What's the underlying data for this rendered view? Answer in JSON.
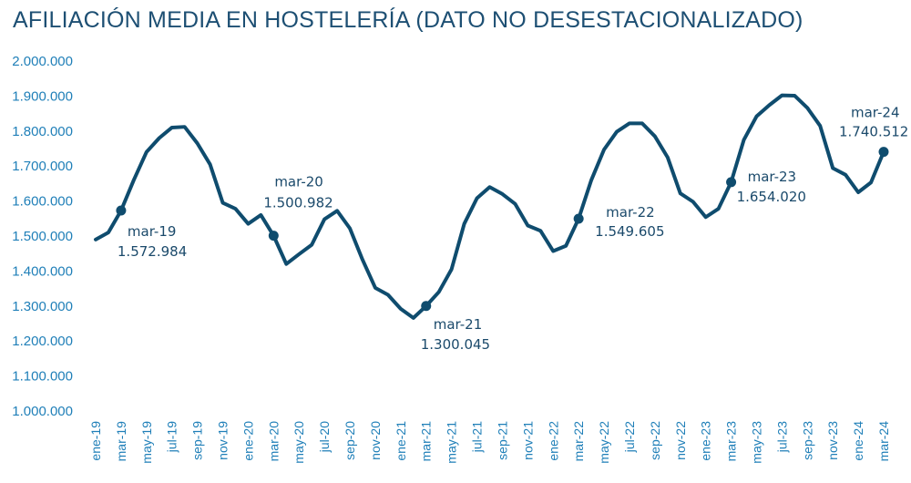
{
  "chart_data": {
    "type": "line",
    "title": "AFILIACIÓN MEDIA EN HOSTELERÍA (DATO NO DESESTACIONALIZADO)",
    "xlabel": "",
    "ylabel": "",
    "ylim": [
      1000000,
      2000000
    ],
    "yticks": [
      "2.000.000",
      "1.900.000",
      "1.800.000",
      "1.700.000",
      "1.600.000",
      "1.500.000",
      "1.400.000",
      "1.300.000",
      "1.200.000",
      "1.100.000",
      "1.000.000"
    ],
    "x": [
      "ene-19",
      "feb-19",
      "mar-19",
      "abr-19",
      "may-19",
      "jun-19",
      "jul-19",
      "ago-19",
      "sep-19",
      "oct-19",
      "nov-19",
      "dic-19",
      "ene-20",
      "feb-20",
      "mar-20",
      "abr-20",
      "may-20",
      "jun-20",
      "jul-20",
      "ago-20",
      "sep-20",
      "oct-20",
      "nov-20",
      "dic-20",
      "ene-21",
      "feb-21",
      "mar-21",
      "abr-21",
      "may-21",
      "jun-21",
      "jul-21",
      "ago-21",
      "sep-21",
      "oct-21",
      "nov-21",
      "dic-21",
      "ene-22",
      "feb-22",
      "mar-22",
      "abr-22",
      "may-22",
      "jun-22",
      "jul-22",
      "ago-22",
      "sep-22",
      "oct-22",
      "nov-22",
      "dic-22",
      "ene-23",
      "feb-23",
      "mar-23",
      "abr-23",
      "may-23",
      "jun-23",
      "jul-23",
      "ago-23",
      "sep-23",
      "oct-23",
      "nov-23",
      "dic-23",
      "ene-24",
      "feb-24",
      "mar-24"
    ],
    "xtick_labels": [
      "ene-19",
      "mar-19",
      "may-19",
      "jul-19",
      "sep-19",
      "nov-19",
      "ene-20",
      "mar-20",
      "may-20",
      "jul-20",
      "sep-20",
      "nov-20",
      "ene-21",
      "mar-21",
      "may-21",
      "jul-21",
      "sep-21",
      "nov-21",
      "ene-22",
      "mar-22",
      "may-22",
      "jul-22",
      "sep-22",
      "nov-22",
      "ene-23",
      "mar-23",
      "may-23",
      "jul-23",
      "sep-23",
      "nov-23",
      "ene-24",
      "mar-24"
    ],
    "series": [
      {
        "values": [
          1490000,
          1510000,
          1572984,
          1660000,
          1740000,
          1780000,
          1810000,
          1812000,
          1765000,
          1705000,
          1595000,
          1578000,
          1535000,
          1560000,
          1500982,
          1420000,
          1448000,
          1475000,
          1548000,
          1572000,
          1522000,
          1432000,
          1352000,
          1332000,
          1292000,
          1266000,
          1300045,
          1340000,
          1405000,
          1535000,
          1608000,
          1640000,
          1620000,
          1592000,
          1530000,
          1515000,
          1457000,
          1472000,
          1549605,
          1660000,
          1747000,
          1798000,
          1822000,
          1822000,
          1785000,
          1725000,
          1622000,
          1598000,
          1554000,
          1578000,
          1654020,
          1775000,
          1842000,
          1874000,
          1902000,
          1901000,
          1866000,
          1815000,
          1694000,
          1675000,
          1625000,
          1653000,
          1740512
        ],
        "color": "#0f4c6e"
      }
    ],
    "annotations": [
      {
        "month": "mar-19",
        "label": "mar-19",
        "value_label": "1.572.984"
      },
      {
        "month": "mar-20",
        "label": "mar-20",
        "value_label": "1.500.982"
      },
      {
        "month": "mar-21",
        "label": "mar-21",
        "value_label": "1.300.045"
      },
      {
        "month": "mar-22",
        "label": "mar-22",
        "value_label": "1.549.605"
      },
      {
        "month": "mar-23",
        "label": "mar-23",
        "value_label": "1.654.020"
      },
      {
        "month": "mar-24",
        "label": "mar-24",
        "value_label": "1.740.512"
      }
    ],
    "grid": false,
    "legend": "none",
    "colors": {
      "line": "#0f4c6e",
      "ticks": "#1f7fb8",
      "title": "#1d4f73",
      "annotation": "#1b4a6b"
    }
  }
}
